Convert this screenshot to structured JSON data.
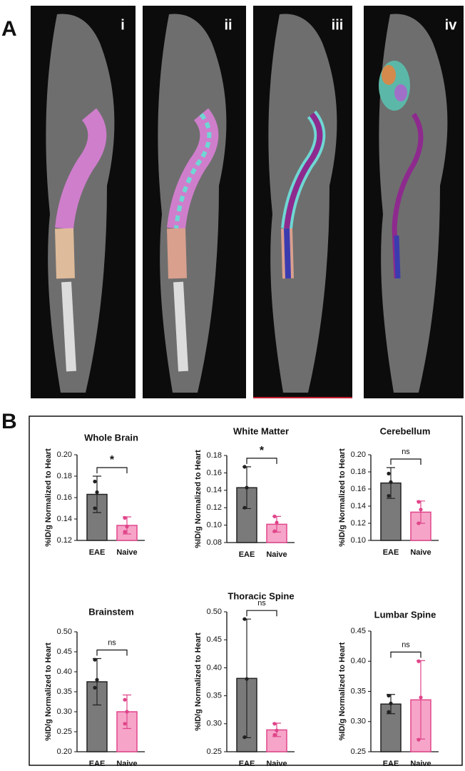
{
  "panels": {
    "a_label": "A",
    "b_label": "B",
    "image_labels": [
      "i",
      "ii",
      "iii",
      "iv"
    ]
  },
  "chart_data": [
    {
      "type": "bar",
      "title": "Whole Brain",
      "ylabel": "%ID/g Normalized to Heart",
      "categories": [
        "EAE",
        "Naive"
      ],
      "values": [
        0.163,
        0.134
      ],
      "errors": [
        0.017,
        0.008
      ],
      "points": [
        [
          0.175,
          0.165,
          0.15
        ],
        [
          0.141,
          0.133,
          0.128
        ]
      ],
      "colors": [
        "#7a7a7a",
        "#f6a5c8"
      ],
      "significance": "*",
      "ylim": [
        0.12,
        0.2
      ],
      "yticks": [
        {
          "value": 0.12,
          "label": "0.12"
        },
        {
          "value": 0.14,
          "label": "0.14"
        },
        {
          "value": 0.16,
          "label": "0.16"
        },
        {
          "value": 0.18,
          "label": "0.18"
        },
        {
          "value": 0.2,
          "label": "0.20"
        }
      ]
    },
    {
      "type": "bar",
      "title": "White Matter",
      "ylabel": "%ID/g Normalized to Heart",
      "categories": [
        "EAE",
        "Naive"
      ],
      "values": [
        0.143,
        0.101
      ],
      "errors": [
        0.024,
        0.009
      ],
      "points": [
        [
          0.167,
          0.143,
          0.12
        ],
        [
          0.11,
          0.103,
          0.093
        ]
      ],
      "colors": [
        "#7a7a7a",
        "#f6a5c8"
      ],
      "significance": "*",
      "ylim": [
        0.08,
        0.18
      ],
      "yticks": [
        {
          "value": 0.08,
          "label": "0.08"
        },
        {
          "value": 0.1,
          "label": "0.10"
        },
        {
          "value": 0.12,
          "label": "0.12"
        },
        {
          "value": 0.14,
          "label": "0.14"
        },
        {
          "value": 0.16,
          "label": "0.16"
        },
        {
          "value": 0.18,
          "label": "0.18"
        }
      ]
    },
    {
      "type": "bar",
      "title": "Cerebellum",
      "ylabel": "%ID/g Normalized to Heart",
      "categories": [
        "EAE",
        "Naive"
      ],
      "values": [
        0.167,
        0.133
      ],
      "errors": [
        0.018,
        0.013
      ],
      "points": [
        [
          0.178,
          0.168,
          0.152
        ],
        [
          0.145,
          0.136,
          0.12
        ]
      ],
      "colors": [
        "#7a7a7a",
        "#f6a5c8"
      ],
      "significance": "ns",
      "ylim": [
        0.1,
        0.2
      ],
      "yticks": [
        {
          "value": 0.1,
          "label": "0.10"
        },
        {
          "value": 0.12,
          "label": "0.12"
        },
        {
          "value": 0.14,
          "label": "0.14"
        },
        {
          "value": 0.16,
          "label": "0.16"
        },
        {
          "value": 0.18,
          "label": "0.18"
        },
        {
          "value": 0.2,
          "label": "0.20"
        }
      ]
    },
    {
      "type": "bar",
      "title": "Brainstem",
      "ylabel": "%ID/g Normalized to Heart",
      "categories": [
        "EAE",
        "Naive"
      ],
      "values": [
        0.375,
        0.3
      ],
      "errors": [
        0.058,
        0.042
      ],
      "points": [
        [
          0.43,
          0.38,
          0.36
        ],
        [
          0.33,
          0.3,
          0.27
        ]
      ],
      "colors": [
        "#7a7a7a",
        "#f6a5c8"
      ],
      "significance": "ns",
      "ylim": [
        0.2,
        0.5
      ],
      "yticks": [
        {
          "value": 0.2,
          "label": "0.20"
        },
        {
          "value": 0.25,
          "label": "0.25"
        },
        {
          "value": 0.3,
          "label": "0.30"
        },
        {
          "value": 0.35,
          "label": "0.35"
        },
        {
          "value": 0.4,
          "label": "0.40"
        },
        {
          "value": 0.45,
          "label": "0.45"
        },
        {
          "value": 0.5,
          "label": "0.50"
        }
      ]
    },
    {
      "type": "bar",
      "title": "Thoracic Spine",
      "ylabel": "%ID/g Normalized to Heart",
      "categories": [
        "EAE",
        "Naive"
      ],
      "values": [
        0.381,
        0.289
      ],
      "errors": [
        0.106,
        0.012
      ],
      "points": [
        [
          0.487,
          0.38,
          0.276
        ],
        [
          0.3,
          0.288,
          0.28
        ]
      ],
      "colors": [
        "#7a7a7a",
        "#f6a5c8"
      ],
      "significance": "ns",
      "ylim": [
        0.25,
        0.5
      ],
      "yticks": [
        {
          "value": 0.25,
          "label": "0.25"
        },
        {
          "value": 0.3,
          "label": "0.30"
        },
        {
          "value": 0.35,
          "label": "0.35"
        },
        {
          "value": 0.4,
          "label": "0.40"
        },
        {
          "value": 0.45,
          "label": "0.45"
        },
        {
          "value": 0.5,
          "label": "0.50"
        }
      ]
    },
    {
      "type": "bar",
      "title": "Lumbar Spine",
      "ylabel": "%ID/g Normalized to Heart",
      "categories": [
        "EAE",
        "Naive"
      ],
      "values": [
        0.329,
        0.336
      ],
      "errors": [
        0.016,
        0.065
      ],
      "points": [
        [
          0.343,
          0.33,
          0.316
        ],
        [
          0.4,
          0.34,
          0.27
        ]
      ],
      "colors": [
        "#7a7a7a",
        "#f6a5c8"
      ],
      "significance": "ns",
      "ylim": [
        0.25,
        0.45
      ],
      "yticks": [
        {
          "value": 0.25,
          "label": "0.25"
        },
        {
          "value": 0.3,
          "label": "0.30"
        },
        {
          "value": 0.35,
          "label": "0.35"
        },
        {
          "value": 0.4,
          "label": "0.40"
        },
        {
          "value": 0.45,
          "label": "0.45"
        }
      ]
    }
  ]
}
